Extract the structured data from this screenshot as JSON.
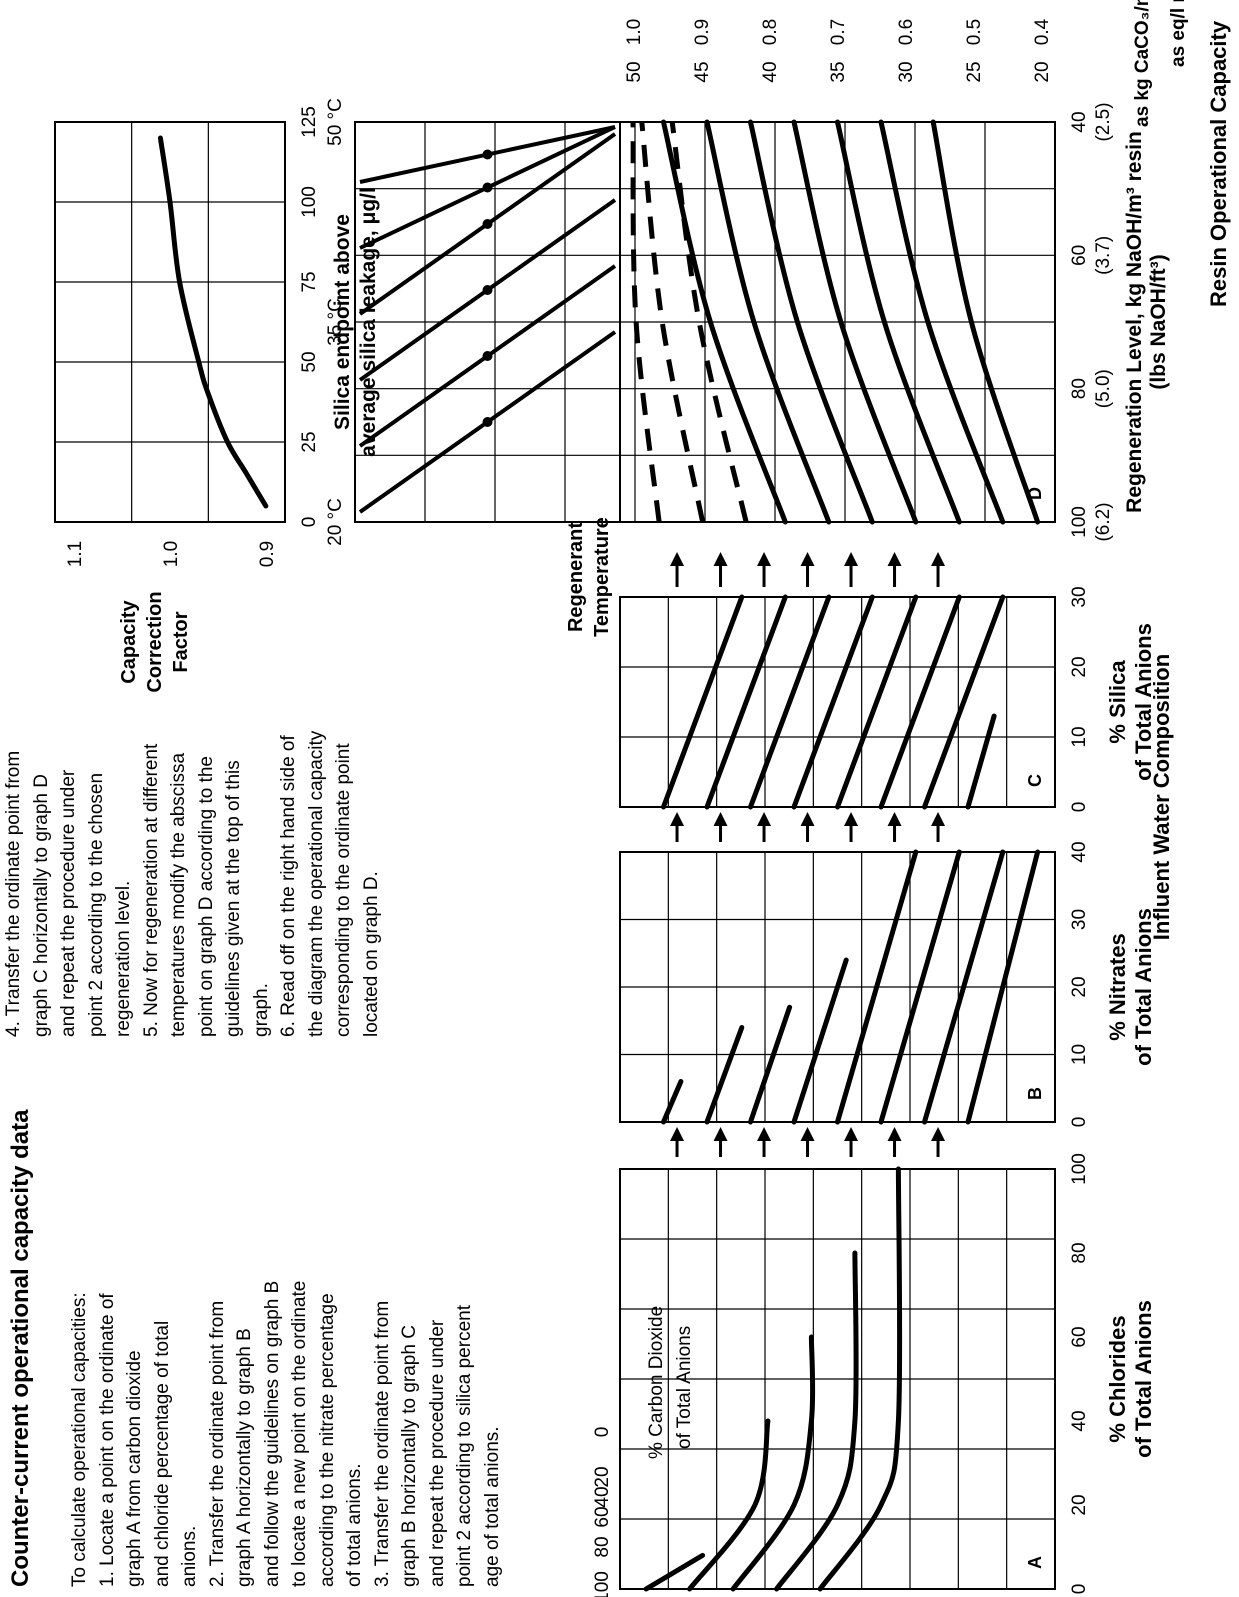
{
  "title": "Counter-current operational capacity data",
  "instructions": {
    "column1": [
      "To calculate operational capacities:",
      "1.  Locate a point on the ordinate of",
      "graph A from carbon dioxide",
      "and chloride percentage of total",
      "anions.",
      "2.  Transfer the ordinate point from",
      "graph A horizontally to graph B",
      "and follow the guidelines on graph B",
      "to locate a new point on the ordinate",
      "according to the nitrate percentage",
      "of total anions.",
      "3.  Transfer the ordinate point from",
      "graph B horizontally to graph C",
      "and repeat the procedure under",
      "point 2 according to silica percent",
      "age of total anions."
    ],
    "column2": [
      "4.  Transfer the ordinate point from",
      "graph C horizontally to graph D",
      "and repeat the procedure under",
      "point 2 according to the chosen",
      "regeneration level.",
      "5.  Now for regeneration at different",
      "temperatures modify the abscissa",
      "point on graph D according to the",
      "guidelines given at the top of this",
      "graph.",
      "6.  Read off on the right hand side of",
      "the diagram the operational capacity",
      "corresponding to the ordinate point",
      "located on graph D."
    ]
  },
  "influent_label": "Influent Water Composition",
  "regenerant_temperature_label": [
    "Regenerant",
    "Temperature"
  ],
  "resin_capacity_label": "Resin Operational Capacity",
  "capacity_units": {
    "kg_label": "as kg CaCO₃/m³ resin kg/ft³",
    "eq_label": "as eq/l resin",
    "kg_values": [
      "50",
      "45",
      "40",
      "35",
      "30",
      "25",
      "20"
    ],
    "eq_values": [
      "1.0",
      "0.9",
      "0.8",
      "0.7",
      "0.6",
      "0.5",
      "0.4"
    ]
  },
  "chart_data": [
    {
      "type": "line",
      "panel_letter": "A",
      "xlabel": [
        "% Chlorides",
        "of Total Anions"
      ],
      "x_ticks": [
        "0",
        "20",
        "40",
        "60",
        "80",
        "100"
      ],
      "y_ticks": [
        "100",
        "80",
        "60",
        "40",
        "20",
        "0"
      ],
      "series_label": [
        "% Carbon Dioxide",
        "of Total Anions"
      ],
      "series": [
        {
          "name": "100",
          "x": [
            0,
            8
          ],
          "y": [
            0.94,
            0.81
          ]
        },
        {
          "name": "80",
          "x": [
            0,
            20,
            40
          ],
          "y": [
            0.84,
            0.69,
            0.66
          ]
        },
        {
          "name": "60",
          "x": [
            0,
            20,
            40,
            60
          ],
          "y": [
            0.74,
            0.6,
            0.56,
            0.56
          ]
        },
        {
          "name": "40",
          "x": [
            0,
            20,
            40,
            80
          ],
          "y": [
            0.64,
            0.5,
            0.46,
            0.46
          ]
        },
        {
          "name": "20",
          "x": [
            0,
            20,
            40,
            100
          ],
          "y": [
            0.54,
            0.4,
            0.36,
            0.36
          ]
        }
      ]
    },
    {
      "type": "line",
      "panel_letter": "B",
      "xlabel": [
        "% Nitrates",
        "of Total Anions"
      ],
      "x_ticks": [
        "0",
        "10",
        "20",
        "30",
        "40"
      ],
      "lines": [
        {
          "x": [
            0,
            6
          ],
          "y": [
            0.9,
            0.86
          ]
        },
        {
          "x": [
            0,
            14
          ],
          "y": [
            0.8,
            0.72
          ]
        },
        {
          "x": [
            0,
            17
          ],
          "y": [
            0.7,
            0.61
          ]
        },
        {
          "x": [
            0,
            24
          ],
          "y": [
            0.6,
            0.48
          ]
        },
        {
          "x": [
            0,
            40
          ],
          "y": [
            0.5,
            0.32
          ]
        },
        {
          "x": [
            0,
            40
          ],
          "y": [
            0.4,
            0.22
          ]
        },
        {
          "x": [
            0,
            40
          ],
          "y": [
            0.3,
            0.12
          ]
        },
        {
          "x": [
            0,
            40
          ],
          "y": [
            0.2,
            0.04
          ]
        }
      ]
    },
    {
      "type": "line",
      "panel_letter": "C",
      "xlabel": [
        "% Silica",
        "of Total Anions"
      ],
      "x_ticks": [
        "0",
        "10",
        "20",
        "30"
      ],
      "lines": [
        {
          "x": [
            0,
            30
          ],
          "y": [
            0.9,
            0.72
          ]
        },
        {
          "x": [
            0,
            30
          ],
          "y": [
            0.8,
            0.62
          ]
        },
        {
          "x": [
            0,
            30
          ],
          "y": [
            0.7,
            0.52
          ]
        },
        {
          "x": [
            0,
            30
          ],
          "y": [
            0.6,
            0.42
          ]
        },
        {
          "x": [
            0,
            30
          ],
          "y": [
            0.5,
            0.32
          ]
        },
        {
          "x": [
            0,
            30
          ],
          "y": [
            0.4,
            0.22
          ]
        },
        {
          "x": [
            0,
            30
          ],
          "y": [
            0.3,
            0.12
          ]
        },
        {
          "x": [
            0,
            13
          ],
          "y": [
            0.2,
            0.14
          ]
        }
      ]
    },
    {
      "type": "line",
      "panel_letter": "D",
      "xlabel": [
        "Regeneration Level, kg NaOH/m³ resin",
        "(lbs NaOH/ft³)"
      ],
      "x_ticks": [
        "100",
        "80",
        "60",
        "40"
      ],
      "x_ticks_lbs": [
        "(6.2)",
        "(5.0)",
        "(3.7)",
        "(2.5)"
      ],
      "temperature_ticks": [
        "20 °C",
        "35 °C",
        "50 °C"
      ],
      "dashed_lines": [
        {
          "x": [
            100,
            40
          ],
          "y": [
            0.91,
            0.97
          ]
        },
        {
          "x": [
            100,
            40
          ],
          "y": [
            0.81,
            0.95
          ]
        },
        {
          "x": [
            100,
            40
          ],
          "y": [
            0.71,
            0.88
          ]
        }
      ],
      "solid_lines": [
        {
          "x": [
            100,
            40
          ],
          "y": [
            0.62,
            0.9
          ]
        },
        {
          "x": [
            100,
            40
          ],
          "y": [
            0.52,
            0.8
          ]
        },
        {
          "x": [
            100,
            40
          ],
          "y": [
            0.42,
            0.7
          ]
        },
        {
          "x": [
            100,
            40
          ],
          "y": [
            0.32,
            0.6
          ]
        },
        {
          "x": [
            100,
            40
          ],
          "y": [
            0.22,
            0.5
          ]
        },
        {
          "x": [
            100,
            40
          ],
          "y": [
            0.12,
            0.4
          ]
        },
        {
          "x": [
            100,
            40
          ],
          "y": [
            0.04,
            0.28
          ]
        }
      ]
    },
    {
      "type": "line",
      "xlabel": [
        "Silica endpoint above",
        "average silica leakage, μg/l"
      ],
      "ylabel": [
        "Capacity",
        "Correction",
        "Factor"
      ],
      "x_ticks": [
        "0",
        "25",
        "50",
        "75",
        "100",
        "125"
      ],
      "y_ticks": [
        "1.1",
        "1.0",
        "0.9"
      ],
      "xlim": [
        0,
        125
      ],
      "ylim": [
        0.88,
        1.12
      ],
      "series": [
        {
          "x": [
            5,
            15,
            25,
            40,
            50,
            75,
            100,
            120
          ],
          "y": [
            0.9,
            0.92,
            0.94,
            0.96,
            0.97,
            0.99,
            1.0,
            1.01
          ]
        }
      ]
    }
  ]
}
